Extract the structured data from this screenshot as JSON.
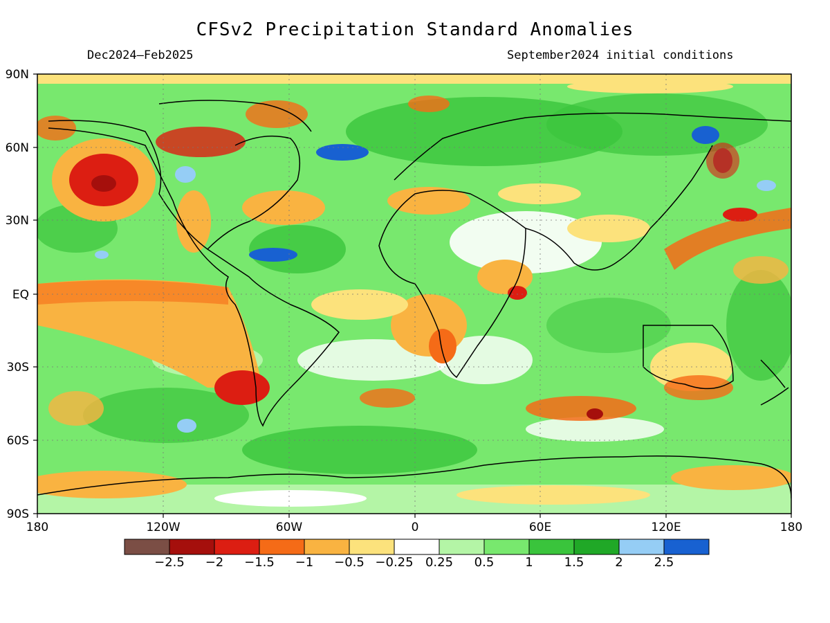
{
  "header": {
    "title": "CFSv2 Precipitation Standard Anomalies",
    "period": "Dec2024–Feb2025",
    "initial_conditions": "September2024 initial conditions"
  },
  "axes": {
    "lat_labels": [
      "90N",
      "60N",
      "30N",
      "EQ",
      "30S",
      "60S",
      "90S"
    ],
    "lon_labels": [
      "180",
      "120W",
      "60W",
      "0",
      "60E",
      "120E",
      "180"
    ]
  },
  "colorbar": {
    "colors": [
      "#7b4e45",
      "#a50f0c",
      "#dc1e12",
      "#f56b17",
      "#f9b341",
      "#fce27c",
      "#ffffff",
      "#b4f5a6",
      "#78e86e",
      "#3ac43c",
      "#20a827",
      "#95cdf5",
      "#1861d1"
    ],
    "labels": [
      "−2.5",
      "−2",
      "−1.5",
      "−1",
      "−0.5",
      "−0.25",
      "0.25",
      "0.5",
      "1",
      "1.5",
      "2",
      "2.5"
    ]
  }
}
